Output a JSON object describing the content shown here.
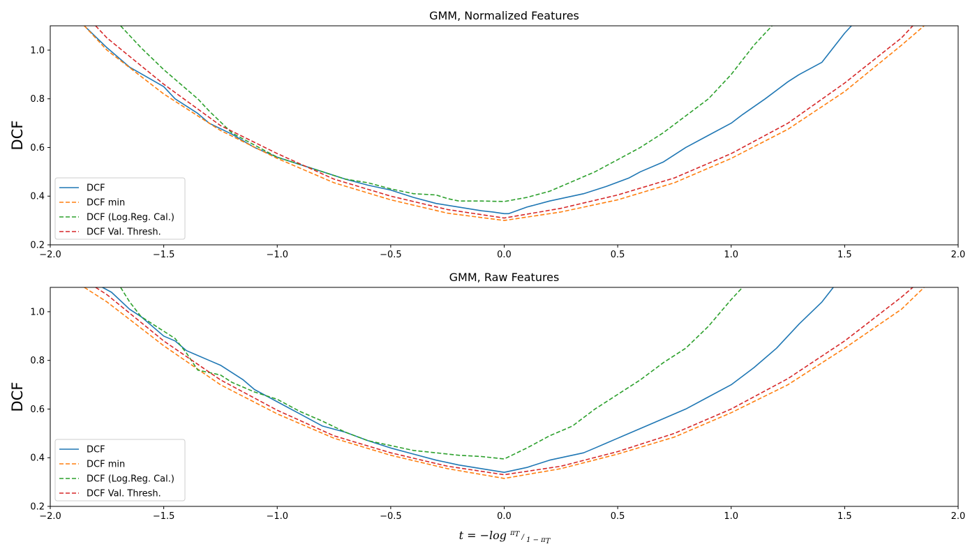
{
  "colors": {
    "DCF": "#1f77b4",
    "DCF min": "#ff7f0e",
    "DCF (Log.Reg. Cal.)": "#2ca02c",
    "DCF Val. Thresh.": "#d62728"
  },
  "x_axis_label": {
    "prefix": "t = −log",
    "num": "π",
    "num_sub": "T",
    "den": "1 − π",
    "den_sub": "T"
  },
  "chart_data": [
    {
      "type": "line",
      "title": "GMM, Normalized Features",
      "xlabel": "",
      "ylabel": "DCF",
      "xlim": [
        -2.0,
        2.0
      ],
      "ylim": [
        0.2,
        1.1
      ],
      "xticks": [
        -2.0,
        -1.5,
        -1.0,
        -0.5,
        0.0,
        0.5,
        1.0,
        1.5,
        2.0
      ],
      "xtick_labels": [
        "−2.0",
        "−1.5",
        "−1.0",
        "−0.5",
        "0.0",
        "0.5",
        "1.0",
        "1.5",
        "2.0"
      ],
      "yticks": [
        0.2,
        0.4,
        0.6,
        0.8,
        1.0
      ],
      "ytick_labels": [
        "0.2",
        "0.4",
        "0.6",
        "0.8",
        "1.0"
      ],
      "legend": "lower-left",
      "series": [
        {
          "name": "DCF",
          "style": "solid",
          "x": [
            -1.85,
            -1.75,
            -1.65,
            -1.5,
            -1.45,
            -1.35,
            -1.3,
            -1.2,
            -1.1,
            -1.0,
            -0.9,
            -0.8,
            -0.7,
            -0.6,
            -0.5,
            -0.4,
            -0.3,
            -0.2,
            -0.1,
            -0.05,
            0.0,
            0.02,
            0.1,
            0.2,
            0.3,
            0.35,
            0.45,
            0.55,
            0.6,
            0.7,
            0.8,
            0.9,
            1.0,
            1.05,
            1.15,
            1.25,
            1.3,
            1.4,
            1.5,
            1.53
          ],
          "y": [
            1.1,
            1.01,
            0.93,
            0.85,
            0.8,
            0.74,
            0.7,
            0.655,
            0.6,
            0.56,
            0.53,
            0.5,
            0.47,
            0.445,
            0.425,
            0.395,
            0.37,
            0.355,
            0.34,
            0.335,
            0.328,
            0.328,
            0.355,
            0.38,
            0.4,
            0.41,
            0.44,
            0.475,
            0.5,
            0.54,
            0.6,
            0.65,
            0.7,
            0.735,
            0.8,
            0.87,
            0.9,
            0.95,
            1.07,
            1.1
          ]
        },
        {
          "name": "DCF min",
          "style": "dashed",
          "x": [
            -1.85,
            -1.75,
            -1.5,
            -1.25,
            -1.0,
            -0.75,
            -0.5,
            -0.25,
            0.0,
            0.25,
            0.5,
            0.75,
            1.0,
            1.25,
            1.5,
            1.75,
            1.85
          ],
          "y": [
            1.1,
            1.0,
            0.82,
            0.67,
            0.555,
            0.455,
            0.385,
            0.33,
            0.3,
            0.335,
            0.385,
            0.455,
            0.555,
            0.675,
            0.83,
            1.02,
            1.1
          ]
        },
        {
          "name": "DCF (Log.Reg. Cal.)",
          "style": "dashed",
          "x": [
            -1.69,
            -1.65,
            -1.6,
            -1.5,
            -1.45,
            -1.35,
            -1.3,
            -1.2,
            -1.1,
            -1.0,
            -0.9,
            -0.8,
            -0.7,
            -0.6,
            -0.5,
            -0.4,
            -0.3,
            -0.25,
            -0.2,
            -0.1,
            0.0,
            0.1,
            0.2,
            0.3,
            0.4,
            0.5,
            0.6,
            0.7,
            0.8,
            0.9,
            1.0,
            1.1,
            1.18
          ],
          "y": [
            1.1,
            1.06,
            1.01,
            0.92,
            0.88,
            0.8,
            0.75,
            0.66,
            0.61,
            0.56,
            0.53,
            0.5,
            0.47,
            0.455,
            0.43,
            0.41,
            0.405,
            0.39,
            0.38,
            0.38,
            0.378,
            0.395,
            0.42,
            0.46,
            0.5,
            0.55,
            0.6,
            0.66,
            0.73,
            0.8,
            0.9,
            1.02,
            1.1
          ]
        },
        {
          "name": "DCF Val. Thresh.",
          "style": "dashed",
          "x": [
            -1.8,
            -1.75,
            -1.5,
            -1.25,
            -1.0,
            -0.75,
            -0.5,
            -0.25,
            0.0,
            0.25,
            0.5,
            0.75,
            1.0,
            1.25,
            1.5,
            1.75,
            1.8
          ],
          "y": [
            1.1,
            1.05,
            0.86,
            0.69,
            0.575,
            0.47,
            0.4,
            0.345,
            0.31,
            0.35,
            0.405,
            0.475,
            0.575,
            0.7,
            0.865,
            1.05,
            1.1
          ]
        }
      ]
    },
    {
      "type": "line",
      "title": "GMM, Raw Features",
      "xlabel": "t = −log(π_T / (1 − π_T))",
      "ylabel": "DCF",
      "xlim": [
        -2.0,
        2.0
      ],
      "ylim": [
        0.2,
        1.1
      ],
      "xticks": [
        -2.0,
        -1.5,
        -1.0,
        -0.5,
        0.0,
        0.5,
        1.0,
        1.5,
        2.0
      ],
      "xtick_labels": [
        "−2.0",
        "−1.5",
        "−1.0",
        "−0.5",
        "0.0",
        "0.5",
        "1.0",
        "1.5",
        "2.0"
      ],
      "yticks": [
        0.2,
        0.4,
        0.6,
        0.8,
        1.0
      ],
      "ytick_labels": [
        "0.2",
        "0.4",
        "0.6",
        "0.8",
        "1.0"
      ],
      "legend": "lower-left",
      "series": [
        {
          "name": "DCF",
          "style": "solid",
          "x": [
            -1.77,
            -1.73,
            -1.65,
            -1.6,
            -1.5,
            -1.45,
            -1.4,
            -1.3,
            -1.25,
            -1.2,
            -1.15,
            -1.1,
            -1.0,
            -0.9,
            -0.8,
            -0.7,
            -0.6,
            -0.5,
            -0.4,
            -0.3,
            -0.2,
            -0.1,
            0.0,
            0.1,
            0.2,
            0.3,
            0.35,
            0.4,
            0.5,
            0.6,
            0.7,
            0.8,
            0.9,
            1.0,
            1.1,
            1.2,
            1.3,
            1.4,
            1.45
          ],
          "y": [
            1.1,
            1.08,
            1.01,
            0.98,
            0.9,
            0.88,
            0.84,
            0.8,
            0.78,
            0.75,
            0.72,
            0.68,
            0.63,
            0.58,
            0.53,
            0.505,
            0.47,
            0.44,
            0.415,
            0.39,
            0.37,
            0.355,
            0.34,
            0.36,
            0.39,
            0.41,
            0.42,
            0.44,
            0.48,
            0.52,
            0.56,
            0.6,
            0.65,
            0.7,
            0.77,
            0.85,
            0.95,
            1.04,
            1.1
          ]
        },
        {
          "name": "DCF min",
          "style": "dashed",
          "x": [
            -1.85,
            -1.75,
            -1.5,
            -1.25,
            -1.0,
            -0.75,
            -0.5,
            -0.25,
            0.0,
            0.25,
            0.5,
            0.75,
            1.0,
            1.25,
            1.5,
            1.75,
            1.85
          ],
          "y": [
            1.1,
            1.04,
            0.86,
            0.7,
            0.58,
            0.48,
            0.41,
            0.355,
            0.315,
            0.355,
            0.415,
            0.485,
            0.585,
            0.7,
            0.85,
            1.01,
            1.1
          ]
        },
        {
          "name": "DCF (Log.Reg. Cal.)",
          "style": "dashed",
          "x": [
            -1.69,
            -1.65,
            -1.6,
            -1.5,
            -1.45,
            -1.4,
            -1.35,
            -1.3,
            -1.25,
            -1.2,
            -1.1,
            -1.0,
            -0.9,
            -0.8,
            -0.7,
            -0.6,
            -0.5,
            -0.4,
            -0.3,
            -0.2,
            -0.1,
            0.0,
            0.1,
            0.2,
            0.3,
            0.4,
            0.5,
            0.6,
            0.7,
            0.8,
            0.9,
            1.0,
            1.05
          ],
          "y": [
            1.1,
            1.04,
            0.98,
            0.92,
            0.89,
            0.83,
            0.76,
            0.75,
            0.74,
            0.71,
            0.67,
            0.64,
            0.59,
            0.55,
            0.505,
            0.47,
            0.45,
            0.43,
            0.42,
            0.41,
            0.405,
            0.395,
            0.44,
            0.49,
            0.53,
            0.6,
            0.66,
            0.72,
            0.79,
            0.85,
            0.94,
            1.05,
            1.1
          ]
        },
        {
          "name": "DCF Val. Thresh.",
          "style": "dashed",
          "x": [
            -1.8,
            -1.75,
            -1.5,
            -1.25,
            -1.0,
            -0.75,
            -0.5,
            -0.25,
            0.0,
            0.25,
            0.5,
            0.75,
            1.0,
            1.25,
            1.5,
            1.75,
            1.8
          ],
          "y": [
            1.1,
            1.07,
            0.88,
            0.72,
            0.595,
            0.49,
            0.42,
            0.365,
            0.33,
            0.365,
            0.425,
            0.5,
            0.6,
            0.725,
            0.88,
            1.06,
            1.1
          ]
        }
      ]
    }
  ]
}
